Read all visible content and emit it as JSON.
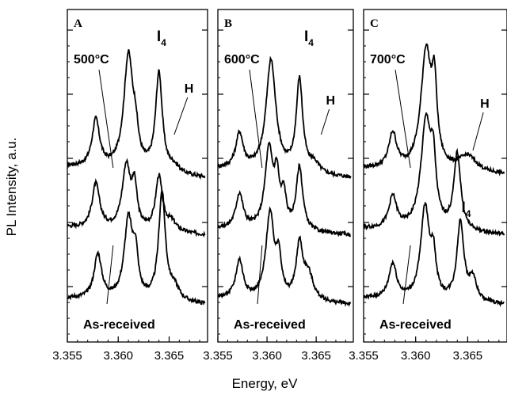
{
  "chart_data": {
    "type": "line",
    "ylabel": "PL Intensity, a.u.",
    "xlabel": "Energy, eV",
    "xlim": [
      3.355,
      3.3685
    ],
    "xticks": [
      "3.355",
      "3.360",
      "3.365"
    ],
    "panels": [
      {
        "letter": "A",
        "annotations": {
          "temp": "500°C",
          "i4": "I",
          "i4sub": "4",
          "h": "H",
          "asreceived": "As-received"
        },
        "series": [
          {
            "offset": 2.0,
            "base": 0.0,
            "slope": 0.18,
            "peaks": [
              [
                3.3578,
                0.75,
                0.00045
              ],
              [
                3.361,
                1.8,
                0.00055
              ],
              [
                3.3617,
                0.4,
                0.0003
              ],
              [
                3.364,
                1.55,
                0.0004
              ],
              [
                3.3655,
                0.1,
                0.0006
              ]
            ]
          },
          {
            "offset": 1.1,
            "base": 0.0,
            "slope": 0.12,
            "peaks": [
              [
                3.3578,
                0.7,
                0.00045
              ],
              [
                3.3608,
                1.0,
                0.0005
              ],
              [
                3.3616,
                0.6,
                0.0003
              ],
              [
                3.364,
                0.85,
                0.0004
              ],
              [
                3.3652,
                0.15,
                0.0006
              ]
            ]
          },
          {
            "offset": 0.0,
            "base": 0.0,
            "slope": 0.1,
            "peaks": [
              [
                3.358,
                0.7,
                0.00045
              ],
              [
                3.361,
                1.25,
                0.0005
              ],
              [
                3.3617,
                0.6,
                0.0003
              ],
              [
                3.3643,
                1.7,
                0.0004
              ],
              [
                3.3655,
                0.2,
                0.0006
              ]
            ]
          }
        ]
      },
      {
        "letter": "B",
        "annotations": {
          "temp": "600°C",
          "i4": "I",
          "i4sub": "4",
          "h": "H",
          "asreceived": "As-received"
        },
        "series": [
          {
            "offset": 2.0,
            "base": 0.0,
            "slope": 0.15,
            "peaks": [
              [
                3.3572,
                0.55,
                0.00045
              ],
              [
                3.3604,
                1.75,
                0.0006
              ],
              [
                3.3633,
                1.45,
                0.0004
              ],
              [
                3.3648,
                0.15,
                0.0006
              ]
            ]
          },
          {
            "offset": 1.1,
            "base": 0.0,
            "slope": 0.1,
            "peaks": [
              [
                3.3572,
                0.55,
                0.00045
              ],
              [
                3.3602,
                1.25,
                0.0005
              ],
              [
                3.361,
                0.7,
                0.0003
              ],
              [
                3.3617,
                0.5,
                0.0003
              ],
              [
                3.3633,
                1.0,
                0.0004
              ]
            ]
          },
          {
            "offset": 0.0,
            "base": 0.0,
            "slope": 0.1,
            "peaks": [
              [
                3.3572,
                0.6,
                0.00045
              ],
              [
                3.3603,
                1.35,
                0.0005
              ],
              [
                3.3612,
                0.6,
                0.0003
              ],
              [
                3.3633,
                0.85,
                0.0004
              ],
              [
                3.3642,
                0.4,
                0.0006
              ]
            ]
          }
        ]
      },
      {
        "letter": "C",
        "annotations": {
          "temp": "700°C",
          "i4": "I",
          "i4sub": "4",
          "h": "H",
          "asreceived": "As-received"
        },
        "series": [
          {
            "offset": 2.05,
            "base": 0.0,
            "slope": 0.1,
            "peaks": [
              [
                3.3578,
                0.55,
                0.00045
              ],
              [
                3.361,
                1.85,
                0.0006
              ],
              [
                3.3618,
                1.1,
                0.0003
              ],
              [
                3.365,
                0.25,
                0.001
              ]
            ]
          },
          {
            "offset": 1.1,
            "base": 0.0,
            "slope": 0.1,
            "peaks": [
              [
                3.3578,
                0.5,
                0.00045
              ],
              [
                3.361,
                1.7,
                0.0006
              ],
              [
                3.3617,
                0.8,
                0.0003
              ],
              [
                3.364,
                1.2,
                0.0004
              ]
            ]
          },
          {
            "offset": 0.0,
            "base": 0.0,
            "slope": 0.1,
            "peaks": [
              [
                3.3578,
                0.55,
                0.00045
              ],
              [
                3.3609,
                1.45,
                0.0005
              ],
              [
                3.3617,
                0.6,
                0.0003
              ],
              [
                3.3643,
                1.25,
                0.0004
              ],
              [
                3.3655,
                0.35,
                0.0004
              ]
            ]
          }
        ]
      }
    ]
  }
}
